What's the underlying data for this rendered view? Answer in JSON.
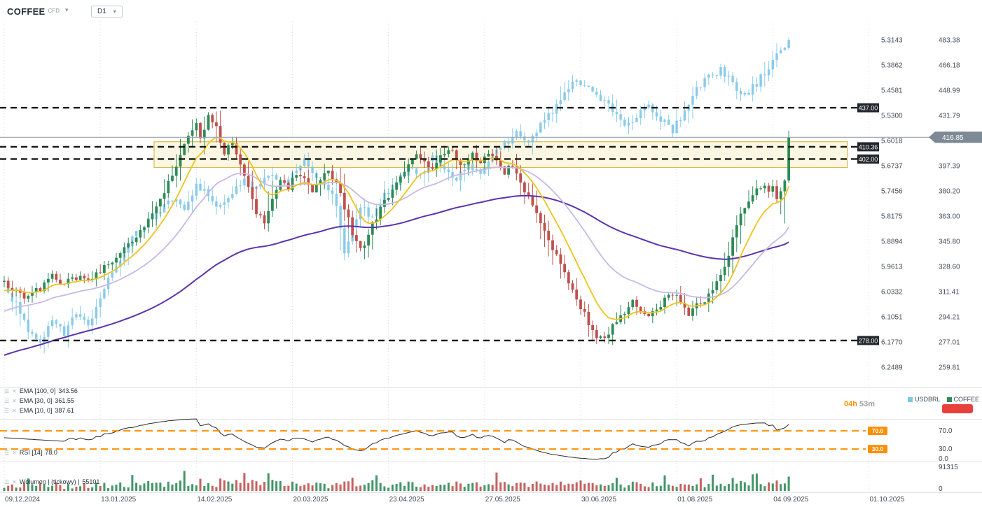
{
  "header": {
    "symbol": "COFFEE",
    "instrument_type": "CFD",
    "timeframe": "D1"
  },
  "icons": {
    "chevron_down": "▾",
    "settings": "☰",
    "close": "✕"
  },
  "timer": {
    "hours": "04h",
    "minutes": "53m"
  },
  "legend": {
    "usdbrl": "USDBRL",
    "coffee": "COFFEE"
  },
  "indicators": {
    "emas": [
      {
        "label": "EMA [100, 0]",
        "value": "343.56"
      },
      {
        "label": "EMA [30, 0]",
        "value": "361.55"
      },
      {
        "label": "EMA [10, 0]",
        "value": "387.61"
      }
    ],
    "rsi": {
      "label": "RSI [14]",
      "value": "78.0"
    },
    "volume": {
      "label": "Wolumen | (tickowy) |",
      "value": "55101"
    }
  },
  "colors": {
    "candle_up": "#2e8b57",
    "candle_down": "#c0504d",
    "usdbrl_fill": "#7cc6e8",
    "usdbrl_stroke": "#4fb0d8",
    "ema10": "#efc31c",
    "ema30": "#c7b9e6",
    "ema100": "#5b34ae",
    "level_line": "#161616",
    "level_badge_bg": "#22272c",
    "level_badge_text": "#ffffff",
    "zone_fill": "rgba(249,240,199,0.5)",
    "zone_border": "#d9bc4f",
    "current_line": "#98a3ac",
    "current_badge_bg": "#7d8a96",
    "current_badge_text": "#ffffff",
    "rsi_line": "#2a2a2a",
    "rsi_band": "#ff8f00",
    "axis_text": "#434c54",
    "grid": "#dedede",
    "separator": "#e3e3e3",
    "timer_hours": "#f59300",
    "timer_minutes": "#9aa0a6",
    "sell_badge": "#e8413c"
  },
  "chart_data": {
    "type": "candlestick",
    "title": "COFFEE CFD D1 with USDBRL overlay",
    "n_candles": 197,
    "x_axis": {
      "labels": [
        "09.12.2024",
        "13.01.2025",
        "14.02.2025",
        "20.03.2025",
        "23.04.2025",
        "27.05.2025",
        "30.06.2025",
        "01.08.2025",
        "04.09.2025",
        "01.10.2025"
      ],
      "tick_indices": [
        0,
        24,
        48,
        72,
        96,
        120,
        144,
        168,
        192,
        216
      ]
    },
    "usdbrl_axis": {
      "values": [
        "5.3143",
        "5.3862",
        "5.4581",
        "5.5300",
        "5.6018",
        "5.6737",
        "5.7456",
        "5.8175",
        "5.8894",
        "5.9613",
        "6.0332",
        "6.1051",
        "6.1770",
        "6.2489"
      ]
    },
    "coffee_axis": {
      "values": [
        "483.38",
        "466.18",
        "448.99",
        "431.79",
        "414.60",
        "397.39",
        "380.20",
        "363.00",
        "345.80",
        "328.60",
        "311.41",
        "294.21",
        "277.01",
        "259.81"
      ]
    },
    "levels": [
      {
        "price": 437.0,
        "label": "437.00"
      },
      {
        "price": 410.36,
        "label": "410.36"
      },
      {
        "price": 402.0,
        "label": "402.00"
      },
      {
        "price": 278.0,
        "label": "278.00"
      }
    ],
    "zone": {
      "price_top": 413.8,
      "price_bottom": 396.2
    },
    "current_price": {
      "price": 416.85,
      "label": "416.85"
    },
    "series": {
      "coffee": {
        "name": "COFFEE",
        "close_anchors": [
          [
            0,
            318
          ],
          [
            3,
            312
          ],
          [
            6,
            307
          ],
          [
            9,
            314
          ],
          [
            12,
            322
          ],
          [
            15,
            317
          ],
          [
            18,
            321
          ],
          [
            21,
            318
          ],
          [
            24,
            326
          ],
          [
            27,
            332
          ],
          [
            30,
            340
          ],
          [
            33,
            349
          ],
          [
            36,
            361
          ],
          [
            39,
            374
          ],
          [
            42,
            392
          ],
          [
            44,
            406
          ],
          [
            46,
            419
          ],
          [
            48,
            427
          ],
          [
            49,
            414
          ],
          [
            51,
            431
          ],
          [
            53,
            423
          ],
          [
            55,
            407
          ],
          [
            57,
            413
          ],
          [
            59,
            399
          ],
          [
            61,
            383
          ],
          [
            63,
            366
          ],
          [
            65,
            359
          ],
          [
            67,
            377
          ],
          [
            69,
            387
          ],
          [
            71,
            381
          ],
          [
            73,
            393
          ],
          [
            75,
            387
          ],
          [
            77,
            379
          ],
          [
            79,
            389
          ],
          [
            81,
            395
          ],
          [
            83,
            385
          ],
          [
            85,
            369
          ],
          [
            87,
            351
          ],
          [
            89,
            339
          ],
          [
            91,
            351
          ],
          [
            93,
            363
          ],
          [
            95,
            373
          ],
          [
            97,
            379
          ],
          [
            99,
            391
          ],
          [
            101,
            399
          ],
          [
            103,
            407
          ],
          [
            105,
            401
          ],
          [
            107,
            394
          ],
          [
            109,
            405
          ],
          [
            111,
            410
          ],
          [
            113,
            402
          ],
          [
            115,
            397
          ],
          [
            117,
            405
          ],
          [
            119,
            398
          ],
          [
            121,
            407
          ],
          [
            123,
            402
          ],
          [
            125,
            393
          ],
          [
            127,
            399
          ],
          [
            129,
            387
          ],
          [
            131,
            376
          ],
          [
            133,
            365
          ],
          [
            135,
            353
          ],
          [
            137,
            341
          ],
          [
            139,
            329
          ],
          [
            141,
            319
          ],
          [
            143,
            307
          ],
          [
            145,
            296
          ],
          [
            147,
            285
          ],
          [
            149,
            279
          ],
          [
            151,
            283
          ],
          [
            153,
            291
          ],
          [
            155,
            298
          ],
          [
            157,
            304
          ],
          [
            159,
            299
          ],
          [
            161,
            293
          ],
          [
            163,
            299
          ],
          [
            165,
            307
          ],
          [
            167,
            311
          ],
          [
            169,
            303
          ],
          [
            171,
            297
          ],
          [
            173,
            302
          ],
          [
            175,
            306
          ],
          [
            177,
            312
          ],
          [
            179,
            322
          ],
          [
            181,
            338
          ],
          [
            183,
            356
          ],
          [
            185,
            370
          ],
          [
            187,
            379
          ],
          [
            189,
            384
          ],
          [
            191,
            379
          ],
          [
            192,
            384
          ],
          [
            193,
            376
          ],
          [
            194,
            381
          ],
          [
            195,
            388
          ],
          [
            196,
            416.85
          ]
        ]
      },
      "usdbrl": {
        "name": "USDBRL",
        "close_anchors": [
          [
            0,
            6.02
          ],
          [
            3,
            6.07
          ],
          [
            6,
            6.15
          ],
          [
            9,
            6.19
          ],
          [
            12,
            6.11
          ],
          [
            15,
            6.15
          ],
          [
            18,
            6.09
          ],
          [
            21,
            6.13
          ],
          [
            24,
            6.05
          ],
          [
            27,
            5.98
          ],
          [
            30,
            5.92
          ],
          [
            33,
            5.87
          ],
          [
            36,
            5.83
          ],
          [
            39,
            5.8
          ],
          [
            42,
            5.77
          ],
          [
            45,
            5.79
          ],
          [
            48,
            5.73
          ],
          [
            51,
            5.76
          ],
          [
            54,
            5.79
          ],
          [
            57,
            5.75
          ],
          [
            60,
            5.71
          ],
          [
            63,
            5.74
          ],
          [
            66,
            5.7
          ],
          [
            69,
            5.73
          ],
          [
            72,
            5.69
          ],
          [
            75,
            5.66
          ],
          [
            78,
            5.7
          ],
          [
            81,
            5.74
          ],
          [
            83,
            5.78
          ],
          [
            85,
            5.93
          ],
          [
            87,
            5.85
          ],
          [
            89,
            5.79
          ],
          [
            92,
            5.82
          ],
          [
            95,
            5.76
          ],
          [
            98,
            5.72
          ],
          [
            101,
            5.68
          ],
          [
            104,
            5.7
          ],
          [
            107,
            5.65
          ],
          [
            110,
            5.68
          ],
          [
            113,
            5.71
          ],
          [
            116,
            5.67
          ],
          [
            119,
            5.7
          ],
          [
            122,
            5.65
          ],
          [
            125,
            5.61
          ],
          [
            128,
            5.58
          ],
          [
            131,
            5.61
          ],
          [
            134,
            5.56
          ],
          [
            137,
            5.52
          ],
          [
            140,
            5.46
          ],
          [
            143,
            5.43
          ],
          [
            146,
            5.45
          ],
          [
            149,
            5.48
          ],
          [
            152,
            5.51
          ],
          [
            155,
            5.56
          ],
          [
            158,
            5.53
          ],
          [
            161,
            5.5
          ],
          [
            164,
            5.54
          ],
          [
            167,
            5.57
          ],
          [
            170,
            5.52
          ],
          [
            173,
            5.46
          ],
          [
            176,
            5.42
          ],
          [
            179,
            5.4
          ],
          [
            182,
            5.44
          ],
          [
            185,
            5.47
          ],
          [
            188,
            5.44
          ],
          [
            191,
            5.39
          ],
          [
            193,
            5.36
          ],
          [
            195,
            5.33
          ],
          [
            196,
            5.32
          ]
        ]
      }
    },
    "emas": [
      {
        "period": 100,
        "last_value": 343.56,
        "seed": 268
      },
      {
        "period": 30,
        "last_value": 361.55,
        "seed": 298
      },
      {
        "period": 10,
        "last_value": 387.61,
        "seed": 312
      }
    ],
    "rsi": {
      "period": 14,
      "current": 78.0,
      "upper": 70,
      "lower": 30,
      "upper_label": "70.0",
      "lower_label": "30.0",
      "zero_label": "0.0"
    },
    "volume": {
      "axis_max": 91315,
      "axis_max_label": "91315",
      "axis_min_label": "0",
      "current": 55101
    }
  }
}
